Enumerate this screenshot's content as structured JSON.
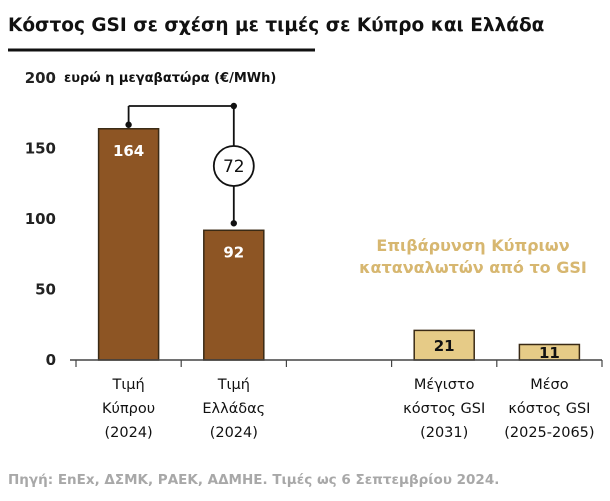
{
  "title": "Κόστος GSI σε σχέση με τιμές σε Κύπρο και Ελλάδα",
  "source": "Πηγή: EnEx, ΔΣΜΚ, ΡΑΕΚ, ΑΔΜΗΕ. Τιμές ως 6 Σεπτεμβρίου 2024.",
  "colors": {
    "price_bar": "#8d5524",
    "gsi_bar": "#e6cb87",
    "note_text": "#d7b770"
  },
  "chart_data": {
    "type": "bar",
    "ylabel": "ευρώ η μεγαβατώρα (€/MWh)",
    "ylim": [
      0,
      200
    ],
    "yticks": [
      0,
      50,
      100,
      150,
      200
    ],
    "grid": false,
    "categories": [
      [
        "Τιμή",
        "Κύπρου",
        "(2024)"
      ],
      [
        "Τιμή",
        "Ελλάδας",
        "(2024)"
      ],
      [
        "",
        "",
        ""
      ],
      [
        "Μέγιστο",
        "κόστος GSI",
        "(2031)"
      ],
      [
        "Μέσο",
        "κόστος GSI",
        "(2025-2065)"
      ]
    ],
    "values": [
      164,
      92,
      null,
      21,
      11
    ],
    "bar_colors": [
      "#8d5524",
      "#8d5524",
      null,
      "#e6cb87",
      "#e6cb87"
    ],
    "data_labels": [
      "164",
      "92",
      "",
      "21",
      "11"
    ],
    "annotations": {
      "difference": {
        "value": "72",
        "from_index": 0,
        "to_index": 1
      },
      "note": [
        "Επιβάρυνση Κύπριων",
        "καταναλωτών από το GSI"
      ]
    }
  }
}
